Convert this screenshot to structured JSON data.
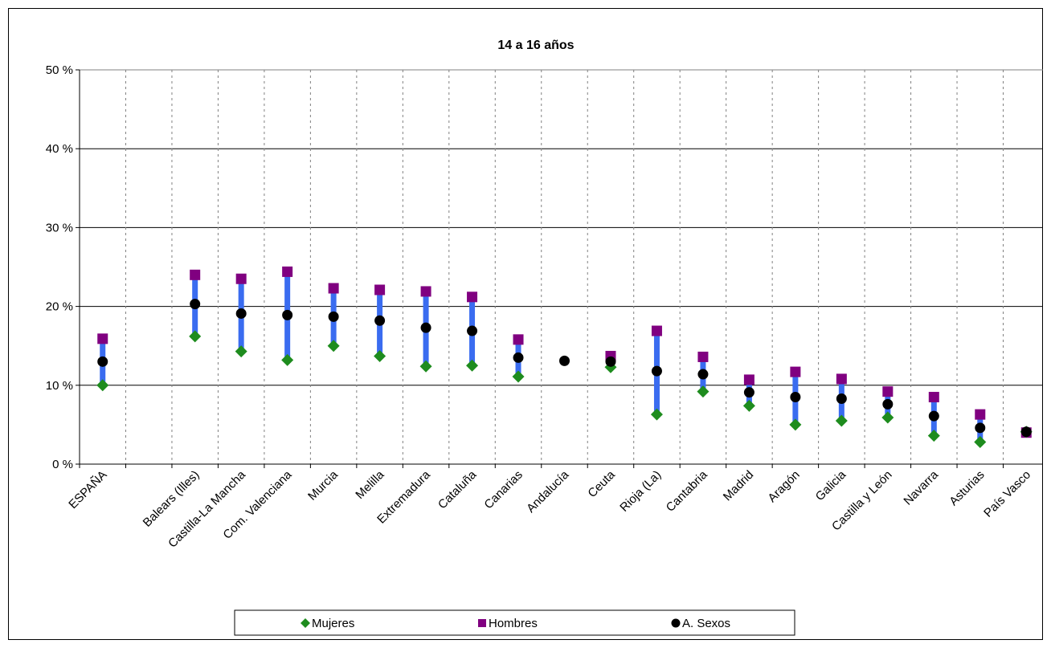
{
  "chart_data": {
    "type": "scatter",
    "title": "14 a 16 años",
    "xlabel": "",
    "ylabel": "",
    "ylim": [
      0,
      50
    ],
    "y_ticks": [
      "0 %",
      "10 %",
      "20 %",
      "30 %",
      "40 %",
      "50 %"
    ],
    "grid": true,
    "legend_position": "bottom",
    "categories": [
      "ESPAÑA",
      "",
      "Balears (Illes)",
      "Castilla-La Mancha",
      "Com. Valenciana",
      "Murcia",
      "Melilla",
      "Extremadura",
      "Cataluña",
      "Canarias",
      "Andalucía",
      "Ceuta",
      "Rioja (La)",
      "Cantabria",
      "Madrid",
      "Aragón",
      "Galicia",
      "Castilla y León",
      "Navarra",
      "Asturias",
      "País Vasco"
    ],
    "series": [
      {
        "name": "Mujeres",
        "marker": "diamond",
        "color": "#1e8c1e",
        "values": [
          10.0,
          null,
          16.2,
          14.3,
          13.2,
          15.0,
          13.7,
          12.4,
          12.5,
          11.1,
          null,
          12.3,
          6.3,
          9.2,
          7.4,
          5.0,
          5.5,
          5.9,
          3.6,
          2.8,
          4.1
        ]
      },
      {
        "name": "Hombres",
        "marker": "square",
        "color": "#800080",
        "values": [
          15.9,
          null,
          24.0,
          23.5,
          24.4,
          22.3,
          22.1,
          21.9,
          21.2,
          15.8,
          null,
          13.7,
          16.9,
          13.6,
          10.7,
          11.7,
          10.8,
          9.2,
          8.5,
          6.3,
          4.0
        ]
      },
      {
        "name": "A. Sexos",
        "marker": "circle",
        "color": "#000000",
        "values": [
          13.0,
          null,
          20.3,
          19.1,
          18.9,
          18.7,
          18.2,
          17.3,
          16.9,
          13.5,
          13.1,
          13.0,
          11.8,
          11.4,
          9.1,
          8.5,
          8.3,
          7.6,
          6.1,
          4.6,
          4.1
        ]
      }
    ],
    "range_bar_color": "#3a6cf0"
  }
}
